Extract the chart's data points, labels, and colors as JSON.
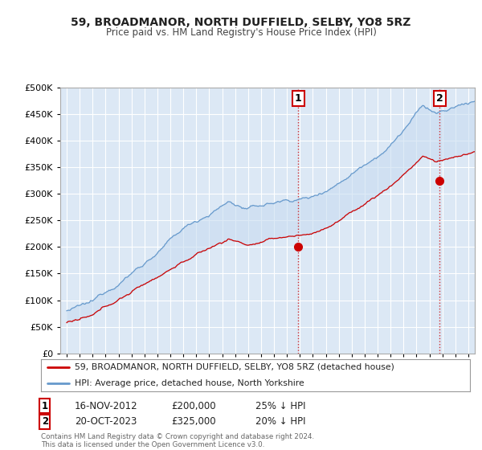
{
  "title": "59, BROADMANOR, NORTH DUFFIELD, SELBY, YO8 5RZ",
  "subtitle": "Price paid vs. HM Land Registry's House Price Index (HPI)",
  "red_label": "59, BROADMANOR, NORTH DUFFIELD, SELBY, YO8 5RZ (detached house)",
  "blue_label": "HPI: Average price, detached house, North Yorkshire",
  "annotation1_date": "16-NOV-2012",
  "annotation1_price": "£200,000",
  "annotation1_pct": "25% ↓ HPI",
  "annotation2_date": "20-OCT-2023",
  "annotation2_price": "£325,000",
  "annotation2_pct": "20% ↓ HPI",
  "footer1": "Contains HM Land Registry data © Crown copyright and database right 2024.",
  "footer2": "This data is licensed under the Open Government Licence v3.0.",
  "ylim": [
    0,
    500000
  ],
  "yticks": [
    0,
    50000,
    100000,
    150000,
    200000,
    250000,
    300000,
    350000,
    400000,
    450000,
    500000
  ],
  "bg_color": "#dce8f5",
  "grid_color": "#ffffff",
  "fill_color": "#c8dcf0",
  "red_color": "#cc0000",
  "blue_color": "#6699cc",
  "point1_x": 2012.88,
  "point1_y": 200000,
  "point2_x": 2023.79,
  "point2_y": 325000,
  "xmin": 1994.5,
  "xmax": 2026.5
}
